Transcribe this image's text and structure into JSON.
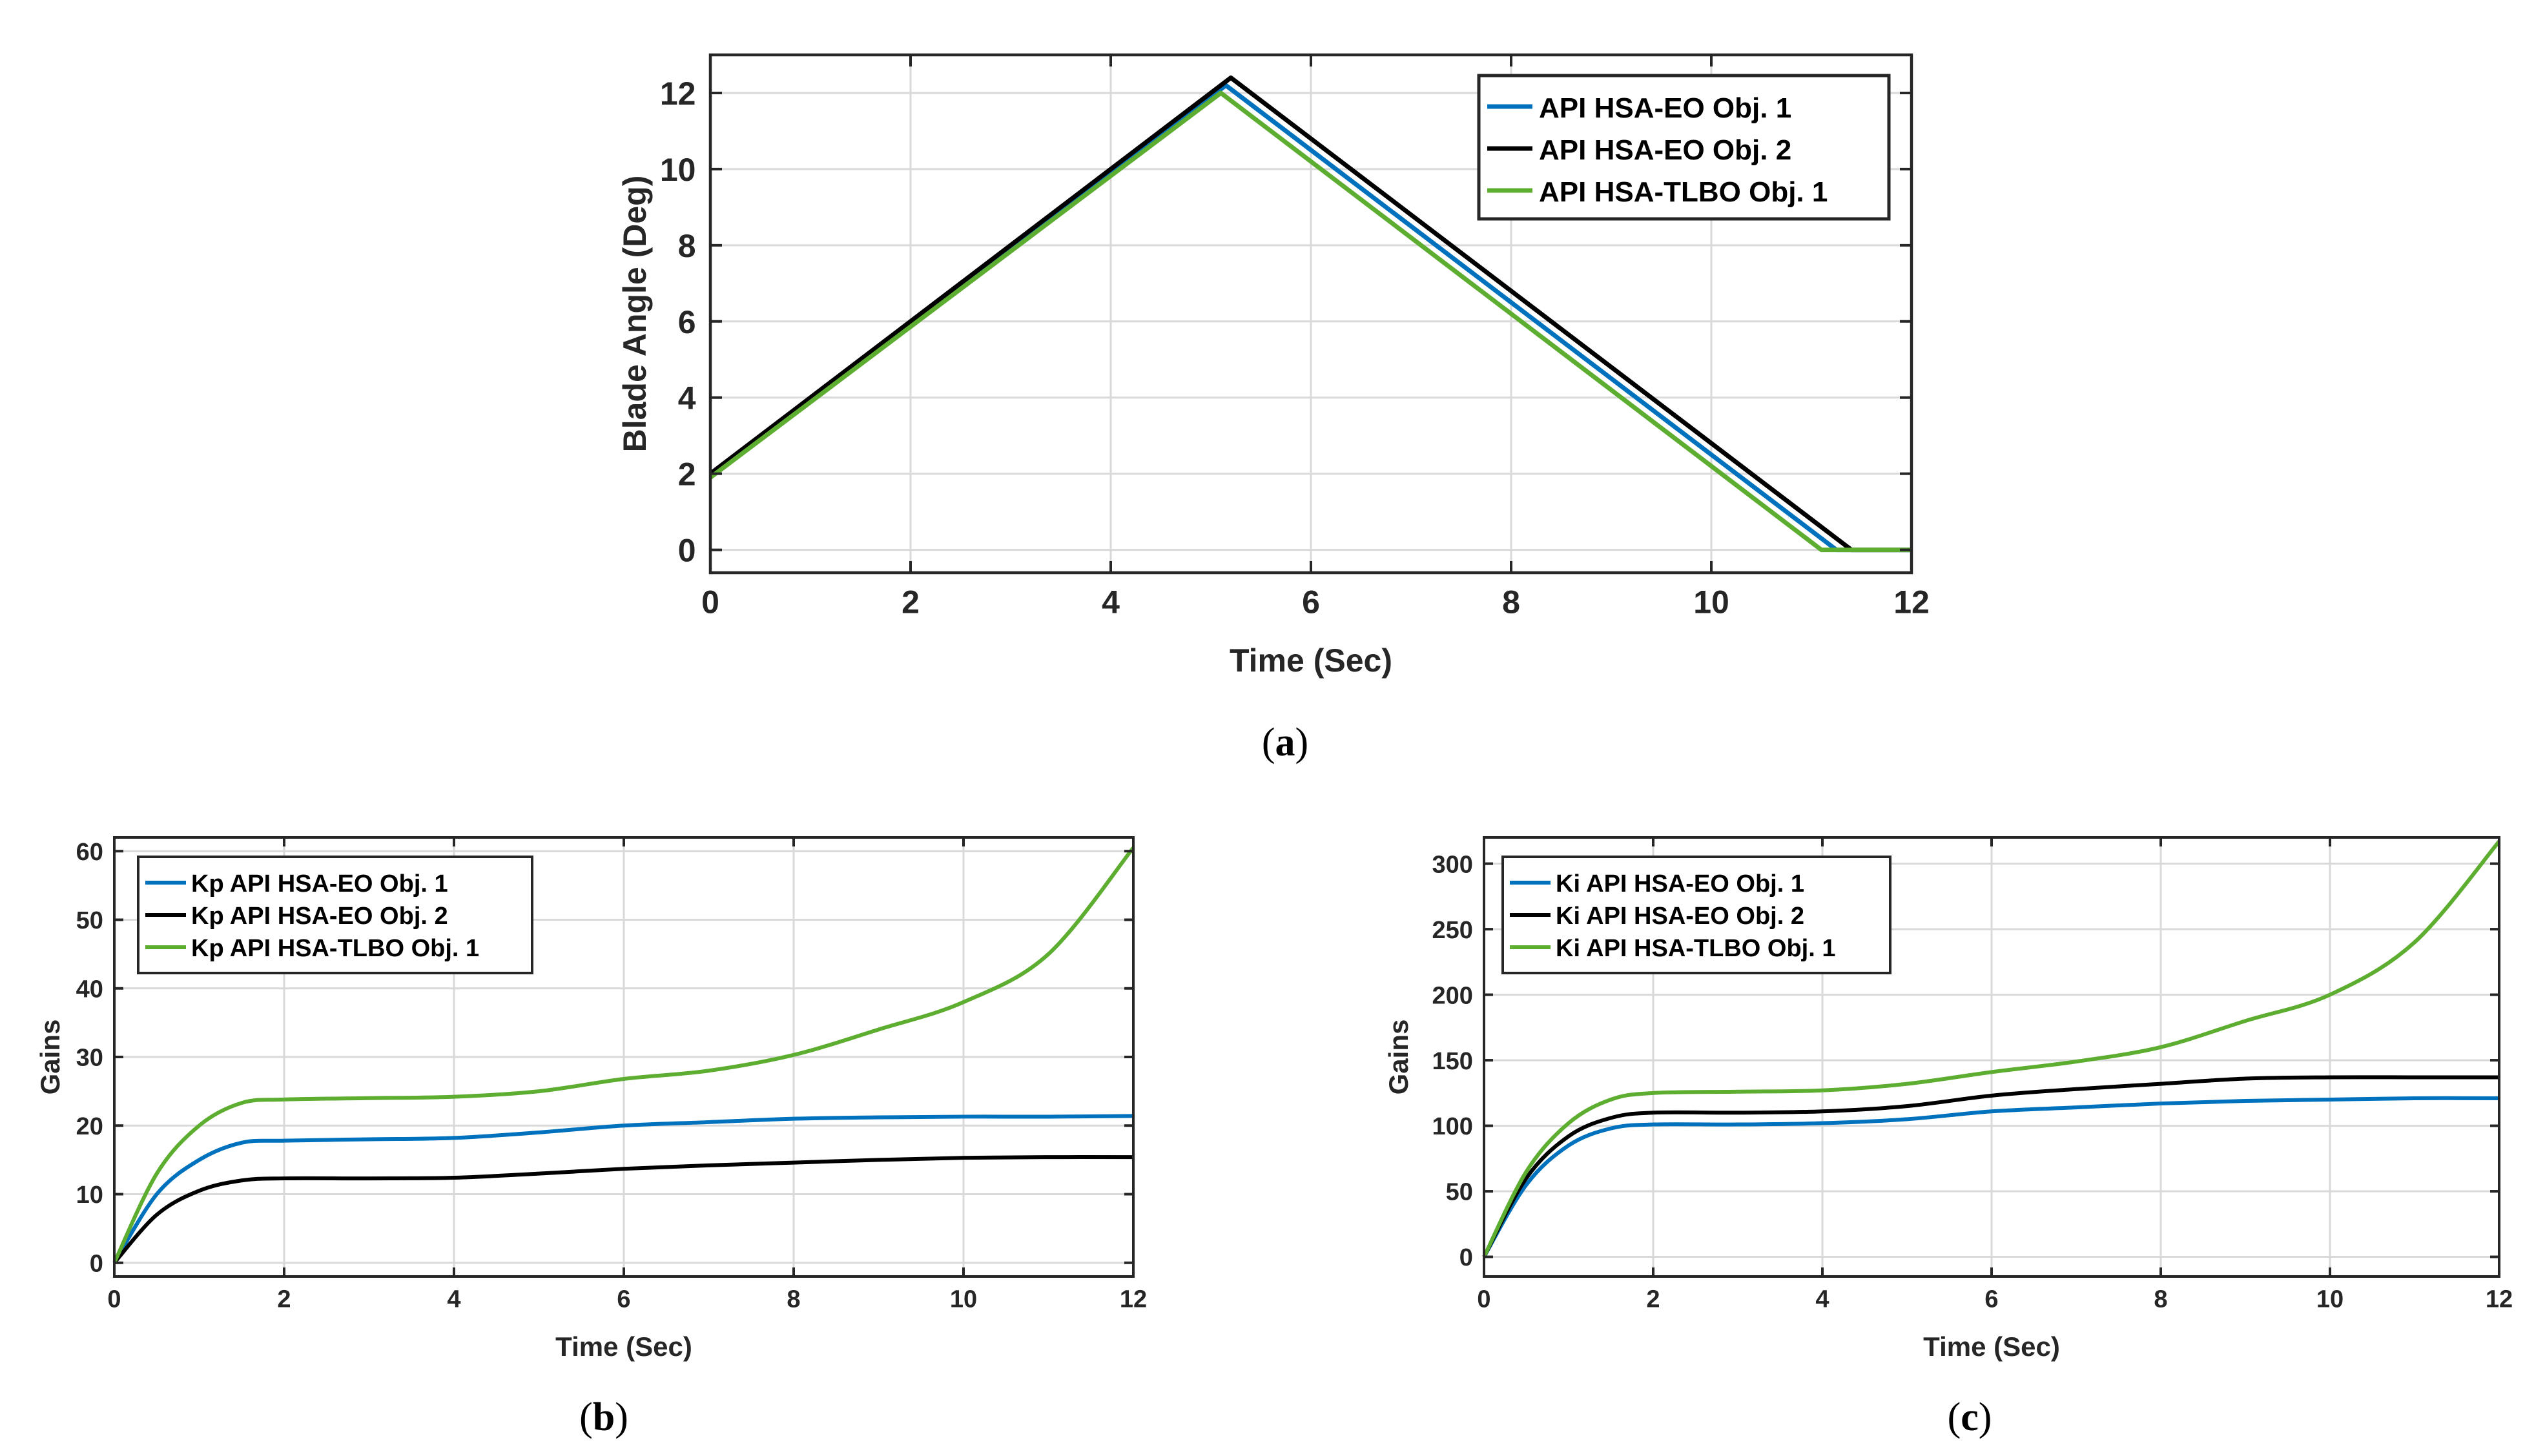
{
  "colors": {
    "blue": "#0072BD",
    "black": "#000000",
    "green": "#5DAE30"
  },
  "chart_data": [
    {
      "id": "a",
      "type": "line",
      "caption_letter": "a",
      "xlabel": "Time (Sec)",
      "ylabel": "Blade Angle (Deg)",
      "xlim": [
        0,
        12
      ],
      "ylim": [
        -0.6,
        13
      ],
      "xticks": [
        0,
        2,
        4,
        6,
        8,
        10,
        12
      ],
      "yticks": [
        0,
        2,
        4,
        6,
        8,
        10,
        12
      ],
      "grid": true,
      "legend": "top-right",
      "series": [
        {
          "name": "API HSA-EO Obj. 1",
          "color": "blue",
          "x": [
            0,
            5.15,
            11.25,
            12
          ],
          "y": [
            2,
            12.2,
            0,
            0
          ]
        },
        {
          "name": "API HSA-EO Obj. 2",
          "color": "black",
          "x": [
            0,
            5.2,
            11.4,
            12
          ],
          "y": [
            2,
            12.4,
            0,
            0
          ]
        },
        {
          "name": "API HSA-TLBO Obj. 1",
          "color": "green",
          "x": [
            0,
            5.1,
            11.1,
            12
          ],
          "y": [
            1.9,
            12,
            0,
            0
          ]
        }
      ]
    },
    {
      "id": "b",
      "type": "line",
      "caption_letter": "b",
      "xlabel": "Time (Sec)",
      "ylabel": "Gains",
      "xlim": [
        0,
        12
      ],
      "ylim": [
        -2,
        62
      ],
      "xticks": [
        0,
        2,
        4,
        6,
        8,
        10,
        12
      ],
      "yticks": [
        0,
        10,
        20,
        30,
        40,
        50,
        60
      ],
      "grid": true,
      "legend": "top-left",
      "series": [
        {
          "name": "Kp API HSA-EO Obj. 1",
          "color": "blue",
          "x": [
            0,
            0.5,
            1,
            1.5,
            2,
            3,
            4,
            5,
            6,
            7,
            8,
            9,
            10,
            11,
            12
          ],
          "y": [
            0,
            10,
            15,
            17.5,
            17.8,
            18,
            18.2,
            19,
            20,
            20.5,
            21,
            21.2,
            21.3,
            21.3,
            21.4
          ]
        },
        {
          "name": "Kp API HSA-EO Obj. 2",
          "color": "black",
          "x": [
            0,
            0.5,
            1,
            1.5,
            2,
            3,
            4,
            5,
            6,
            7,
            8,
            9,
            10,
            11,
            12
          ],
          "y": [
            0,
            7,
            10.5,
            12,
            12.3,
            12.3,
            12.4,
            13,
            13.7,
            14.2,
            14.6,
            15,
            15.3,
            15.4,
            15.4
          ]
        },
        {
          "name": "Kp API HSA-TLBO Obj. 1",
          "color": "green",
          "x": [
            0,
            0.5,
            1,
            1.5,
            2,
            3,
            4,
            5,
            6,
            7,
            8,
            9,
            10,
            11,
            12
          ],
          "y": [
            0,
            13,
            20,
            23.3,
            23.8,
            24,
            24.2,
            25,
            26.8,
            28,
            30.3,
            34,
            38,
            45,
            60.5
          ]
        }
      ]
    },
    {
      "id": "c",
      "type": "line",
      "caption_letter": "c",
      "xlabel": "Time (Sec)",
      "ylabel": "Gains",
      "xlim": [
        0,
        12
      ],
      "ylim": [
        -15,
        320
      ],
      "xticks": [
        0,
        2,
        4,
        6,
        8,
        10,
        12
      ],
      "yticks": [
        0,
        50,
        100,
        150,
        200,
        250,
        300
      ],
      "grid": true,
      "legend": "top-left",
      "series": [
        {
          "name": "Ki API HSA-EO Obj. 1",
          "color": "blue",
          "x": [
            0,
            0.5,
            1,
            1.5,
            2,
            3,
            4,
            5,
            6,
            7,
            8,
            9,
            10,
            11,
            12
          ],
          "y": [
            0,
            55,
            85,
            98,
            101,
            101,
            102,
            105,
            111,
            114,
            117,
            119,
            120,
            121,
            121
          ]
        },
        {
          "name": "Ki API HSA-EO Obj. 2",
          "color": "black",
          "x": [
            0,
            0.5,
            1,
            1.5,
            2,
            3,
            4,
            5,
            6,
            7,
            8,
            9,
            10,
            11,
            12
          ],
          "y": [
            0,
            60,
            92,
            106,
            110,
            110,
            111,
            115,
            123,
            128,
            132,
            136,
            137,
            137,
            137
          ]
        },
        {
          "name": "Ki API HSA-TLBO Obj. 1",
          "color": "green",
          "x": [
            0,
            0.5,
            1,
            1.5,
            2,
            3,
            4,
            5,
            6,
            7,
            8,
            9,
            10,
            11,
            12
          ],
          "y": [
            0,
            65,
            102,
            120,
            125,
            126,
            127,
            132,
            141,
            149,
            160,
            180,
            200,
            240,
            317
          ]
        }
      ]
    }
  ]
}
